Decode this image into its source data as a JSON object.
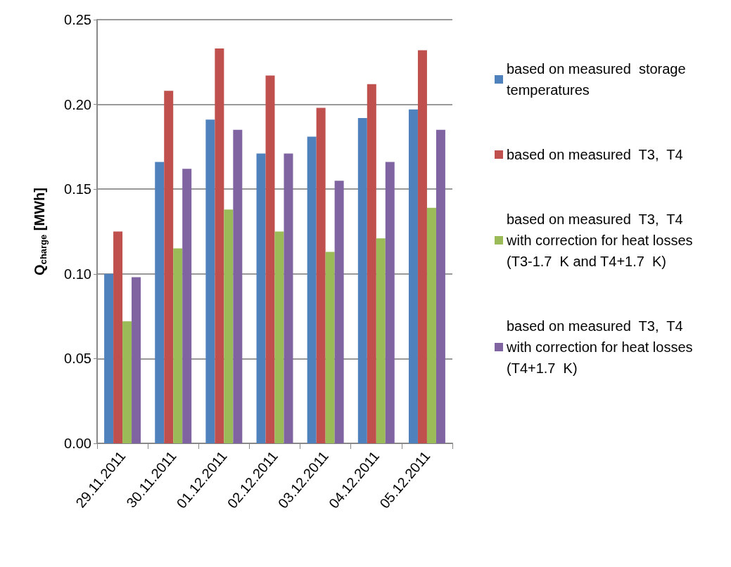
{
  "chart_data": {
    "type": "bar",
    "ylabel": "Q$_{charge}$ [MWh]",
    "categories": [
      "29.11.2011",
      "30.11.2011",
      "01.12.2011",
      "02.12.2011",
      "03.12.2011",
      "04.12.2011",
      "05.12.2011"
    ],
    "series": [
      {
        "name": "based on measured  storage\ntemperatures",
        "color": "#4f81bd",
        "values": [
          0.1,
          0.166,
          0.191,
          0.171,
          0.181,
          0.192,
          0.197
        ]
      },
      {
        "name": "based on measured  T3,  T4",
        "color": "#c0504d",
        "values": [
          0.125,
          0.208,
          0.233,
          0.217,
          0.198,
          0.212,
          0.232
        ]
      },
      {
        "name": "based on measured  T3,  T4\nwith correction for heat losses\n(T3-1.7  K and T4+1.7  K)",
        "color": "#9bbb59",
        "values": [
          0.072,
          0.115,
          0.138,
          0.125,
          0.113,
          0.121,
          0.139
        ]
      },
      {
        "name": "based on measured  T3,  T4\nwith correction for heat losses\n(T4+1.7  K)",
        "color": "#8064a2",
        "values": [
          0.098,
          0.162,
          0.185,
          0.171,
          0.155,
          0.166,
          0.185
        ]
      }
    ],
    "ylim": [
      0,
      0.25
    ],
    "yticks": [
      {
        "value": 0,
        "label": "0.00"
      },
      0.05,
      {
        "value": 0.1,
        "label": "0.10"
      },
      0.15,
      {
        "value": 0.2,
        "label": "0.20"
      },
      0.25
    ],
    "grid": "y",
    "legend": "right"
  }
}
